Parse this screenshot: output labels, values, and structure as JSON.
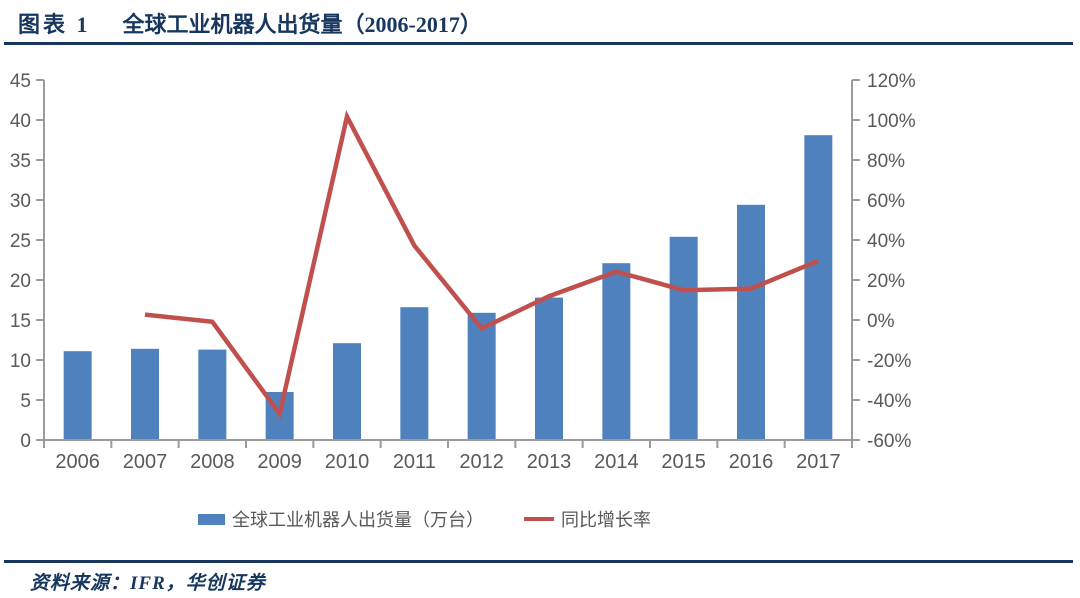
{
  "header": {
    "figure_label": "图表 1",
    "title": "全球工业机器人出货量（2006-2017）"
  },
  "colors": {
    "accent_navy": "#17375E",
    "bar_blue": "#4F81BD",
    "line_red": "#C0504D",
    "axis_gray": "#9B9B9B",
    "tick_label_gray": "#595959"
  },
  "legend": {
    "items": [
      {
        "label": "全球工业机器人出货量（万台）",
        "swatch": "bar",
        "color": "#4F81BD"
      },
      {
        "label": "同比增长率",
        "swatch": "line",
        "color": "#C0504D"
      }
    ]
  },
  "footer": {
    "source": "资料来源：IFR，华创证券"
  },
  "chart_data": {
    "type": "combo",
    "title": "全球工业机器人出货量（2006-2017）",
    "categories": [
      "2006",
      "2007",
      "2008",
      "2009",
      "2010",
      "2011",
      "2012",
      "2013",
      "2014",
      "2015",
      "2016",
      "2017"
    ],
    "series": [
      {
        "name": "全球工业机器人出货量（万台）",
        "chart_type": "bar",
        "axis": "left",
        "color": "#4F81BD",
        "values": [
          11.1,
          11.4,
          11.3,
          6.0,
          12.1,
          16.6,
          15.9,
          17.8,
          22.1,
          25.4,
          29.4,
          38.1
        ]
      },
      {
        "name": "同比增长率",
        "chart_type": "line",
        "axis": "right",
        "color": "#C0504D",
        "unit": "%",
        "values": [
          null,
          2.7,
          -0.9,
          -46.9,
          101.7,
          37.2,
          -4.2,
          11.9,
          24.2,
          14.9,
          15.7,
          29.6
        ]
      }
    ],
    "left_axis": {
      "min": 0,
      "max": 45,
      "step": 5
    },
    "right_axis": {
      "min": -60,
      "max": 120,
      "step": 20,
      "suffix": "%"
    },
    "grid": false,
    "legend_position": "bottom"
  }
}
